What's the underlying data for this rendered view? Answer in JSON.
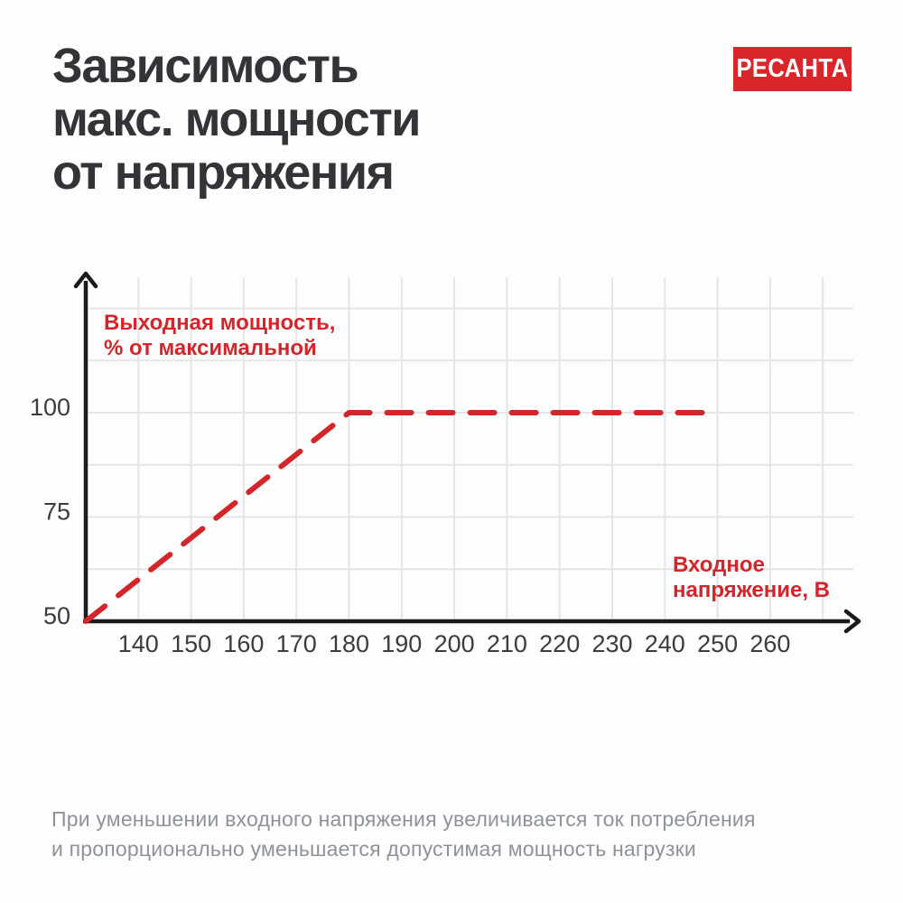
{
  "page": {
    "background": "#fdfdfd"
  },
  "header": {
    "title_lines": [
      "Зависимость",
      "макс. мощности",
      "от напряжения"
    ],
    "title_color": "#333338",
    "logo_text": "РЕСАНТА",
    "logo_bg": "#d8262b",
    "logo_fg": "#ffffff"
  },
  "chart_data": {
    "type": "line",
    "title": "Зависимость макс. мощности от напряжения",
    "x_axis": {
      "label": "Входное напряжение, В",
      "label_lines": [
        "Входное",
        "напряжение, В"
      ],
      "ticks": [
        140,
        150,
        160,
        170,
        180,
        190,
        200,
        210,
        220,
        230,
        240,
        250,
        260
      ],
      "min": 130,
      "max": 272
    },
    "y_axis": {
      "label": "Выходная мощность, % от максимальной",
      "label_lines": [
        "Выходная мощность,",
        "% от максимальной"
      ],
      "ticks": [
        50,
        75,
        100
      ],
      "min": 50,
      "max": 132
    },
    "series": [
      {
        "name": "Выходная мощность, % от максимальной",
        "style": "dashed",
        "color": "#d2262b",
        "points": [
          [
            130,
            50
          ],
          [
            180,
            100
          ],
          [
            250,
            100
          ]
        ]
      }
    ],
    "grid": {
      "on": true,
      "color": "#e5e5e7",
      "x_step": 10,
      "y_step": 12.5
    },
    "axis_color": "#1b1b1b",
    "label_color": "#d2262b",
    "legend": "none"
  },
  "footer": {
    "lines": [
      "При уменьшении входного напряжения увеличивается ток потребления",
      "и пропорционально уменьшается допустимая мощность нагрузки"
    ]
  }
}
